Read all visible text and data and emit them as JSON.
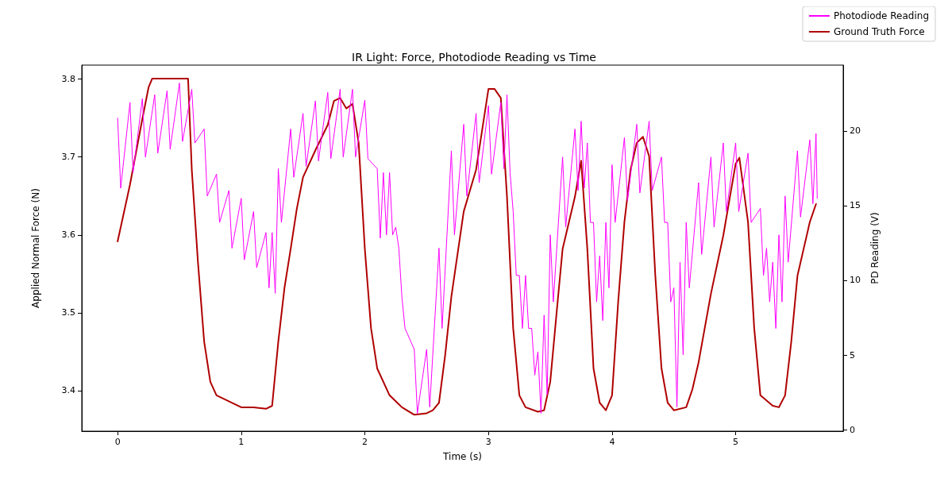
{
  "chart_data": {
    "type": "line",
    "title": "IR Light: Force, Photodiode Reading vs Time",
    "xlabel": "Time (s)",
    "ylabel": "Applied Normal Force (N)",
    "y2label": "PD Reading (V)",
    "xlim": [
      -0.29,
      5.87
    ],
    "xticks": [
      0,
      1,
      2,
      3,
      4,
      5
    ],
    "ylim": [
      3.348,
      3.818
    ],
    "yticks": [
      3.4,
      3.5,
      3.6,
      3.7,
      3.8
    ],
    "y2lim": [
      -0.1,
      24.4
    ],
    "y2ticks": [
      0,
      5,
      10,
      15,
      20
    ],
    "grid": false,
    "legend": "top right",
    "marker": "none",
    "line_style": "solid",
    "series": [
      {
        "name": "Photodiode Reading",
        "color": "#ff00ff",
        "x": [
          0,
          0.025,
          0.1,
          0.125,
          0.2,
          0.225,
          0.3,
          0.325,
          0.4,
          0.425,
          0.5,
          0.525,
          0.6,
          0.625,
          0.7,
          0.725,
          0.8,
          0.825,
          0.9,
          0.925,
          1.0,
          1.025,
          1.1,
          1.125,
          1.2,
          1.225,
          1.25,
          1.275,
          1.3,
          1.325,
          1.4,
          1.425,
          1.5,
          1.525,
          1.6,
          1.625,
          1.7,
          1.725,
          1.8,
          1.825,
          1.9,
          1.925,
          2.0,
          2.025,
          2.1,
          2.125,
          2.15,
          2.175,
          2.2,
          2.225,
          2.25,
          2.275,
          2.3,
          2.325,
          2.4,
          2.425,
          2.5,
          2.525,
          2.6,
          2.625,
          2.7,
          2.725,
          2.8,
          2.825,
          2.9,
          2.925,
          3.0,
          3.025,
          3.1,
          3.125,
          3.15,
          3.175,
          3.2,
          3.225,
          3.25,
          3.275,
          3.3,
          3.325,
          3.35,
          3.375,
          3.4,
          3.425,
          3.45,
          3.475,
          3.5,
          3.525,
          3.6,
          3.625,
          3.7,
          3.725,
          3.75,
          3.775,
          3.8,
          3.825,
          3.85,
          3.875,
          3.9,
          3.925,
          3.95,
          3.975,
          4.0,
          4.025,
          4.1,
          4.125,
          4.2,
          4.225,
          4.3,
          4.325,
          4.4,
          4.425,
          4.45,
          4.475,
          4.5,
          4.525,
          4.55,
          4.575,
          4.6,
          4.625,
          4.7,
          4.725,
          4.8,
          4.825,
          4.9,
          4.925,
          5.0,
          5.025,
          5.1,
          5.125,
          5.2,
          5.225,
          5.25,
          5.275,
          5.3,
          5.325,
          5.35,
          5.375,
          5.4,
          5.425,
          5.5,
          5.525,
          5.6,
          5.625,
          5.65,
          5.66
        ],
        "values": [
          3.75,
          3.66,
          3.77,
          3.68,
          3.775,
          3.7,
          3.78,
          3.705,
          3.785,
          3.71,
          3.795,
          3.72,
          3.787,
          3.718,
          3.736,
          3.65,
          3.678,
          3.616,
          3.657,
          3.583,
          3.647,
          3.568,
          3.63,
          3.558,
          3.603,
          3.532,
          3.603,
          3.525,
          3.685,
          3.616,
          3.736,
          3.674,
          3.756,
          3.688,
          3.772,
          3.695,
          3.783,
          3.698,
          3.787,
          3.7,
          3.787,
          3.7,
          3.773,
          3.698,
          3.685,
          3.596,
          3.68,
          3.6,
          3.68,
          3.6,
          3.61,
          3.583,
          3.52,
          3.48,
          3.453,
          3.371,
          3.453,
          3.379,
          3.583,
          3.48,
          3.708,
          3.6,
          3.742,
          3.65,
          3.756,
          3.667,
          3.766,
          3.678,
          3.77,
          3.685,
          3.78,
          3.68,
          3.63,
          3.548,
          3.548,
          3.48,
          3.548,
          3.48,
          3.48,
          3.42,
          3.45,
          3.371,
          3.497,
          3.395,
          3.6,
          3.514,
          3.7,
          3.61,
          3.736,
          3.657,
          3.746,
          3.66,
          3.718,
          3.616,
          3.616,
          3.514,
          3.573,
          3.49,
          3.616,
          3.532,
          3.69,
          3.616,
          3.725,
          3.644,
          3.742,
          3.654,
          3.746,
          3.657,
          3.7,
          3.616,
          3.616,
          3.514,
          3.532,
          3.379,
          3.565,
          3.446,
          3.616,
          3.532,
          3.667,
          3.575,
          3.7,
          3.61,
          3.718,
          3.63,
          3.718,
          3.63,
          3.705,
          3.616,
          3.634,
          3.548,
          3.583,
          3.514,
          3.565,
          3.48,
          3.6,
          3.514,
          3.65,
          3.565,
          3.708,
          3.623,
          3.722,
          3.64,
          3.73,
          3.647
        ]
      },
      {
        "name": "Ground Truth Force",
        "color": "#b00000",
        "axis": "y2",
        "x": [
          0,
          0.1,
          0.2,
          0.25,
          0.28,
          0.55,
          0.57,
          0.6,
          0.65,
          0.7,
          0.75,
          0.8,
          0.9,
          1.0,
          1.1,
          1.2,
          1.25,
          1.3,
          1.35,
          1.4,
          1.45,
          1.5,
          1.6,
          1.7,
          1.75,
          1.8,
          1.85,
          1.9,
          1.95,
          2.0,
          2.05,
          2.1,
          2.2,
          2.3,
          2.4,
          2.5,
          2.55,
          2.6,
          2.65,
          2.7,
          2.8,
          2.9,
          2.95,
          3.0,
          3.05,
          3.1,
          3.15,
          3.2,
          3.25,
          3.3,
          3.4,
          3.45,
          3.5,
          3.55,
          3.6,
          3.7,
          3.75,
          3.8,
          3.85,
          3.9,
          3.95,
          4.0,
          4.05,
          4.1,
          4.15,
          4.2,
          4.25,
          4.3,
          4.35,
          4.4,
          4.45,
          4.5,
          4.6,
          4.65,
          4.7,
          4.8,
          4.9,
          5.0,
          5.03,
          5.1,
          5.15,
          5.2,
          5.3,
          5.35,
          5.4,
          5.45,
          5.5,
          5.6,
          5.65
        ],
        "values": [
          12.6,
          16.4,
          20.8,
          22.9,
          23.5,
          23.5,
          23.5,
          17.4,
          11.2,
          5.9,
          3.2,
          2.3,
          1.9,
          1.5,
          1.5,
          1.4,
          1.6,
          5.9,
          9.5,
          12.1,
          14.8,
          16.9,
          18.7,
          20.4,
          22.0,
          22.2,
          21.5,
          21.8,
          19.2,
          12.1,
          6.8,
          4.1,
          2.3,
          1.5,
          1.0,
          1.1,
          1.3,
          1.8,
          5.0,
          8.9,
          14.6,
          17.4,
          20.1,
          22.8,
          22.8,
          22.2,
          15.6,
          6.8,
          2.3,
          1.5,
          1.2,
          1.3,
          3.2,
          7.7,
          12.1,
          15.6,
          18.0,
          12.1,
          4.1,
          1.8,
          1.3,
          2.3,
          8.6,
          13.9,
          17.4,
          19.2,
          19.6,
          18.3,
          10.3,
          4.1,
          1.8,
          1.3,
          1.5,
          2.7,
          4.5,
          9.1,
          13.0,
          17.8,
          18.2,
          13.9,
          6.8,
          2.3,
          1.6,
          1.5,
          2.3,
          5.9,
          10.3,
          13.9,
          15.1
        ]
      }
    ]
  }
}
